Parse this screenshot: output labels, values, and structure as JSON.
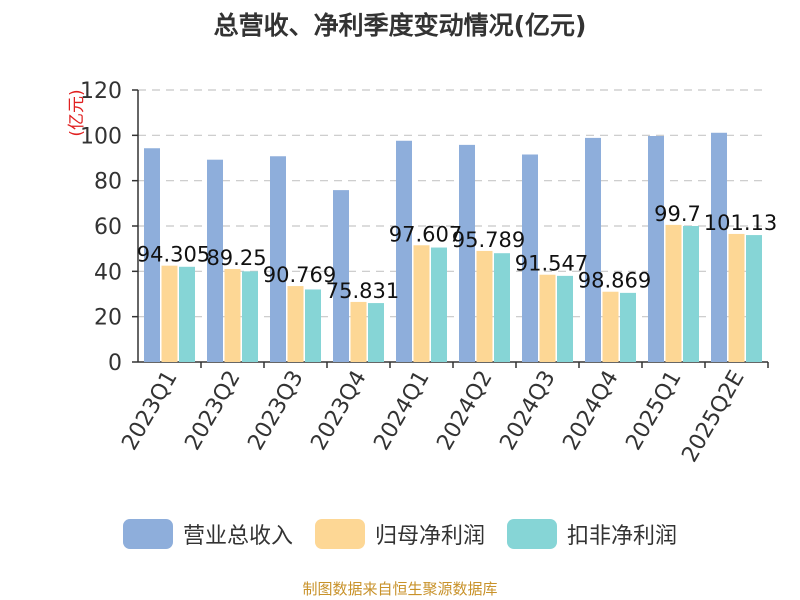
{
  "chart_data": {
    "type": "bar",
    "title": "总营收、净利季度变动情况(亿元)",
    "ylabel": "(亿元)",
    "ylim": [
      0,
      120
    ],
    "yticks": [
      0,
      20,
      40,
      60,
      80,
      100,
      120
    ],
    "grid": true,
    "legend_position": "bottom",
    "categories": [
      "2023Q1",
      "2023Q2",
      "2023Q3",
      "2023Q4",
      "2024Q1",
      "2024Q2",
      "2024Q3",
      "2024Q4",
      "2025Q1",
      "2025Q2E"
    ],
    "series": [
      {
        "name": "营业总收入",
        "color": "#8eaedb",
        "values": [
          94.305,
          89.25,
          90.769,
          75.831,
          97.607,
          95.789,
          91.547,
          98.869,
          99.7,
          101.13
        ]
      },
      {
        "name": "归母净利润",
        "color": "#fdd795",
        "values": [
          42.5,
          41.0,
          33.5,
          26.5,
          51.5,
          49.0,
          38.5,
          31.0,
          60.5,
          56.5
        ]
      },
      {
        "name": "扣非净利润",
        "color": "#86d5d6",
        "values": [
          42.0,
          40.0,
          32.0,
          26.0,
          50.5,
          48.0,
          38.0,
          30.5,
          60.0,
          56.0
        ]
      }
    ],
    "data_labels": [
      "94.305",
      "89.25",
      "90.769",
      "75.831",
      "97.607",
      "95.789",
      "91.547",
      "98.869",
      "99.7",
      "101.13"
    ]
  },
  "source_note": "制图数据来自恒生聚源数据库"
}
